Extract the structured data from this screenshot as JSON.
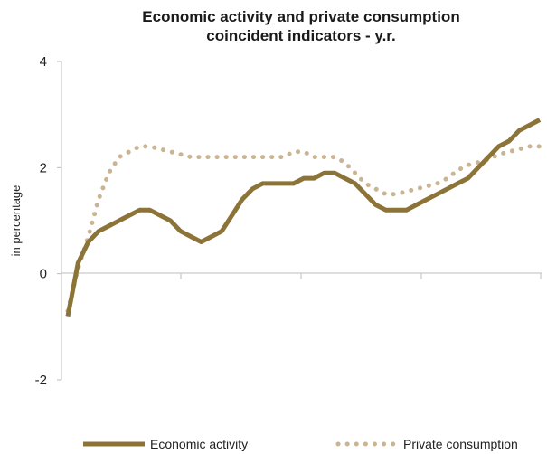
{
  "chart_data": {
    "type": "line",
    "title_lines": [
      "Economic activity and private consumption",
      "coincident indicators - y.r."
    ],
    "ylabel": "in percentage",
    "xlabel": "",
    "ylim": [
      -2,
      4
    ],
    "yticks": [
      4,
      2,
      0,
      -2
    ],
    "grid": false,
    "legend_position": "bottom",
    "x": [
      0,
      1,
      2,
      3,
      4,
      5,
      6,
      7,
      8,
      9,
      10,
      11,
      12,
      13,
      14,
      15,
      16,
      17,
      18,
      19,
      20,
      21,
      22,
      23,
      24,
      25,
      26,
      27,
      28,
      29,
      30,
      31,
      32,
      33,
      34,
      35,
      36,
      37,
      38,
      39,
      40,
      41,
      42,
      43,
      44,
      45,
      46
    ],
    "series": [
      {
        "name": "Economic activity",
        "color": "#8c7338",
        "style": "solid",
        "values": [
          -0.8,
          0.2,
          0.6,
          0.8,
          0.9,
          1.0,
          1.1,
          1.2,
          1.2,
          1.1,
          1.0,
          0.8,
          0.7,
          0.6,
          0.7,
          0.8,
          1.1,
          1.4,
          1.6,
          1.7,
          1.7,
          1.7,
          1.7,
          1.8,
          1.8,
          1.9,
          1.9,
          1.8,
          1.7,
          1.5,
          1.3,
          1.2,
          1.2,
          1.2,
          1.3,
          1.4,
          1.5,
          1.6,
          1.7,
          1.8,
          2.0,
          2.2,
          2.4,
          2.5,
          2.7,
          2.8,
          2.9
        ]
      },
      {
        "name": "Private consumption",
        "color": "#c9b593",
        "style": "dotted",
        "values": [
          -0.7,
          0.1,
          0.7,
          1.4,
          1.9,
          2.2,
          2.3,
          2.4,
          2.4,
          2.35,
          2.3,
          2.25,
          2.2,
          2.2,
          2.2,
          2.2,
          2.2,
          2.2,
          2.2,
          2.2,
          2.2,
          2.2,
          2.3,
          2.3,
          2.2,
          2.2,
          2.2,
          2.1,
          1.9,
          1.7,
          1.6,
          1.5,
          1.5,
          1.55,
          1.6,
          1.65,
          1.7,
          1.8,
          1.95,
          2.05,
          2.1,
          2.15,
          2.25,
          2.3,
          2.35,
          2.4,
          2.4
        ]
      }
    ]
  }
}
